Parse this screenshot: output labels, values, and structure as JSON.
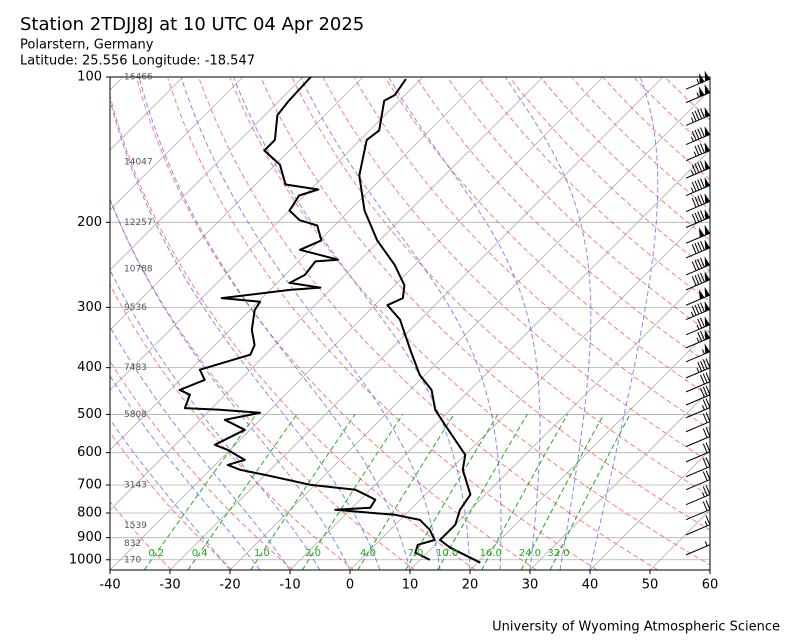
{
  "chart_data": {
    "type": "skewt",
    "title": "Station 2TDJJ8J at 10 UTC 04 Apr 2025",
    "subtitle": [
      "Polarstern, Germany",
      "Latitude: 25.556 Longitude: -18.547"
    ],
    "footer": "University of Wyoming Atmospheric Science",
    "xlim": [
      -40,
      60
    ],
    "xticks": [
      -40,
      -30,
      -20,
      -10,
      0,
      10,
      20,
      30,
      40,
      50,
      60
    ],
    "ylim": [
      1050,
      100
    ],
    "yticks": [
      100,
      200,
      300,
      400,
      500,
      600,
      700,
      800,
      900,
      1000
    ],
    "ylog": true,
    "grid": true,
    "series": [
      {
        "color": "#000000",
        "pressure": [
          1014,
          944,
          910,
          846,
          788,
          733,
          651,
          606,
          525,
          489,
          445,
          414,
          367,
          318,
          297,
          287,
          270,
          245,
          218,
          189,
          160,
          135,
          129,
          112,
          109,
          101
        ],
        "values": [
          20.5,
          13.0,
          10.0,
          10.0,
          8.3,
          7.5,
          2.1,
          0.0,
          -8.4,
          -12.5,
          -16.4,
          -20.9,
          -26.7,
          -33.4,
          -37.9,
          -36.5,
          -38.4,
          -43.4,
          -50.4,
          -57.5,
          -64.2,
          -68.9,
          -68.4,
          -72.5,
          -71.7,
          -72.5
        ]
      },
      {
        "color": "#000000",
        "pressure": [
          1000,
          967,
          931,
          910,
          867,
          827,
          807,
          788,
          780,
          751,
          733,
          716,
          699,
          667,
          651,
          636,
          621,
          592,
          578,
          538,
          513,
          496,
          489,
          485,
          455,
          445,
          424,
          404,
          376,
          359,
          334,
          304,
          292,
          287,
          276,
          273,
          267,
          257,
          241,
          239,
          228,
          218,
          203,
          198,
          189,
          176,
          171,
          167,
          152,
          142,
          135,
          120,
          112,
          100
        ],
        "values": [
          11.6,
          8.0,
          7.1,
          9.1,
          6.6,
          3.3,
          -1.7,
          -12.5,
          -7.0,
          -7.5,
          -10.0,
          -12.5,
          -20.9,
          -30.0,
          -35.0,
          -37.9,
          -35.9,
          -40.4,
          -43.4,
          -40.9,
          -45.9,
          -41.2,
          -48.4,
          -54.5,
          -55.9,
          -58.4,
          -55.9,
          -58.4,
          -52.5,
          -53.4,
          -56.4,
          -59.2,
          -59.7,
          -66.7,
          -56.7,
          -52.0,
          -57.9,
          -56.7,
          -57.2,
          -53.7,
          -61.7,
          -59.7,
          -62.9,
          -66.7,
          -70.0,
          -70.9,
          -68.7,
          -75.0,
          -79.2,
          -84.2,
          -84.2,
          -87.9,
          -88.4,
          -88.7
        ]
      }
    ],
    "height_labels": {
      "pressure": [
        100,
        150,
        200,
        250,
        300,
        400,
        500,
        700,
        850,
        925,
        1000
      ],
      "values": [
        16466,
        14047,
        12257,
        10788,
        9536,
        7483,
        5808,
        3143,
        1539,
        832,
        170
      ]
    },
    "mixing_ratios": [
      {
        "value": 0.2,
        "label": "0.2"
      },
      {
        "value": 0.4,
        "label": "0.4"
      },
      {
        "value": 1,
        "label": "1.0"
      },
      {
        "value": 2,
        "label": "2.0"
      },
      {
        "value": 4,
        "label": "4.0"
      },
      {
        "value": 7,
        "label": "7.0"
      },
      {
        "value": 10,
        "label": "10.0"
      },
      {
        "value": 16,
        "label": "16.0"
      },
      {
        "value": 24,
        "label": "24.0"
      },
      {
        "value": 32,
        "label": "32.0"
      }
    ],
    "wind": {
      "pressure": [
        106,
        113,
        126,
        138,
        149,
        162,
        176,
        190,
        205,
        221,
        237,
        257,
        276,
        297,
        318,
        342,
        364,
        389,
        420,
        449,
        478,
        508,
        543,
        583,
        627,
        673,
        716,
        769,
        826,
        888,
        977
      ],
      "speed": [
        105,
        105,
        95,
        95,
        85,
        95,
        95,
        90,
        90,
        100,
        90,
        90,
        90,
        100,
        95,
        75,
        75,
        55,
        45,
        30,
        30,
        25,
        20,
        20,
        20,
        20,
        20,
        25,
        20,
        15,
        5
      ]
    }
  }
}
